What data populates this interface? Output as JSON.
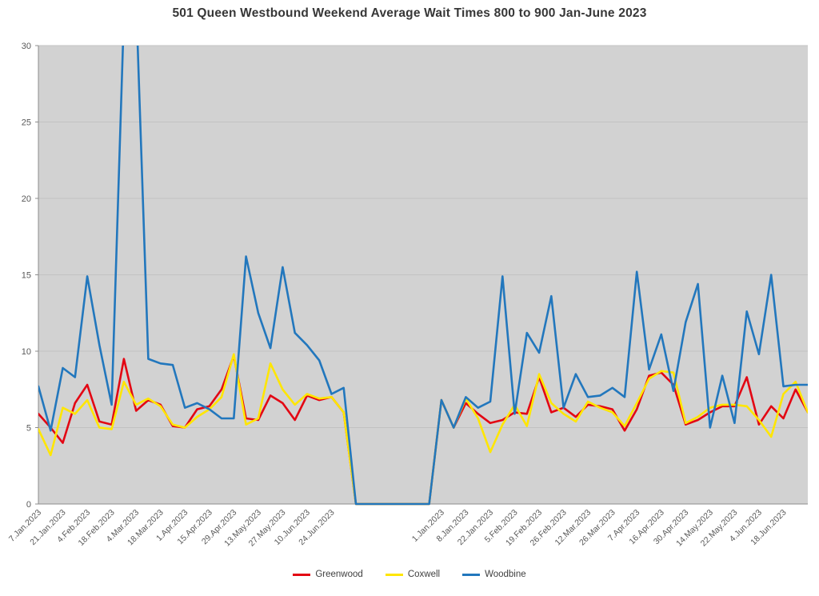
{
  "title": "501 Queen Westbound Weekend Average Wait Times 800 to 900 Jan-June 2023",
  "chart_data": {
    "type": "line",
    "title": "501 Queen Westbound Weekend Average Wait Times 800 to 900 Jan-June 2023",
    "xlabel": "",
    "ylabel": "",
    "ylim": [
      0,
      30
    ],
    "yticks": [
      0,
      5,
      10,
      15,
      20,
      25,
      30
    ],
    "grid": true,
    "legend_position": "bottom",
    "plot_bg": "#d2d2d2",
    "grid_color": "#c2c2c2",
    "axis_color": "#8c8c8c",
    "categories": [
      "7.Jan.2023",
      "",
      "21.Jan.2023",
      "",
      "4.Feb.2023",
      "",
      "18.Feb.2023",
      "",
      "4.Mar.2023",
      "",
      "18.Mar.2023",
      "",
      "1.Apr.2023",
      "",
      "15.Apr.2023",
      "",
      "29.Apr.2023",
      "",
      "13.May.2023",
      "",
      "27.May.2023",
      "",
      "10.Jun.2023",
      "",
      "24.Jun.2023",
      "",
      "",
      "",
      "",
      "",
      "",
      "",
      "",
      "1.Jan.2023",
      "",
      "8.Jan.2023",
      "",
      "22.Jan.2023",
      "",
      "5.Feb.2023",
      "",
      "19.Feb.2023",
      "",
      "26.Feb.2023",
      "",
      "12.Mar.2023",
      "",
      "26.Mar.2023",
      "",
      "7.Apr.2023",
      "",
      "16.Apr.2023",
      "",
      "30.Apr.2023",
      "",
      "14.May.2023",
      "",
      "22.May.2023",
      "",
      "4.Jun.2023",
      "",
      "18.Jun.2023",
      "",
      ""
    ],
    "series": [
      {
        "name": "Greenwood",
        "color": "#e30613",
        "values": [
          5.9,
          5.0,
          4.0,
          6.6,
          7.8,
          5.4,
          5.2,
          9.5,
          6.1,
          6.8,
          6.5,
          5.1,
          5.0,
          6.2,
          6.4,
          7.5,
          9.7,
          5.6,
          5.5,
          7.1,
          6.6,
          5.5,
          7.1,
          6.8,
          7.0,
          6.0,
          0,
          0,
          0,
          0,
          0,
          0,
          0,
          6.8,
          5.0,
          6.6,
          5.9,
          5.3,
          5.5,
          6.0,
          5.9,
          8.3,
          6.0,
          6.3,
          5.7,
          6.5,
          6.4,
          6.2,
          4.8,
          6.2,
          8.4,
          8.6,
          7.8,
          5.2,
          5.5,
          6.0,
          6.4,
          6.4,
          8.3,
          5.2,
          6.4,
          5.6,
          7.5,
          6.0
        ]
      },
      {
        "name": "Coxwell",
        "color": "#ffe600",
        "values": [
          4.9,
          3.2,
          6.3,
          5.9,
          6.8,
          5.0,
          4.9,
          8.0,
          6.5,
          6.9,
          6.4,
          5.2,
          5.0,
          5.7,
          6.2,
          7.0,
          9.8,
          5.2,
          5.6,
          9.2,
          7.5,
          6.5,
          7.2,
          6.9,
          7.0,
          6.0,
          0,
          0,
          0,
          0,
          0,
          0,
          0,
          6.8,
          5.0,
          6.9,
          5.6,
          3.4,
          5.2,
          6.5,
          5.1,
          8.5,
          6.6,
          5.9,
          5.4,
          6.7,
          6.3,
          6.0,
          5.1,
          6.6,
          8.2,
          8.7,
          8.6,
          5.3,
          5.7,
          6.3,
          6.5,
          6.5,
          6.4,
          5.5,
          4.4,
          7.2,
          8.0,
          6.0
        ]
      },
      {
        "name": "Woodbine",
        "color": "#2277bd",
        "values": [
          7.7,
          4.8,
          8.9,
          8.3,
          14.9,
          10.4,
          6.5,
          32,
          33,
          9.5,
          9.2,
          9.1,
          6.3,
          6.6,
          6.2,
          5.6,
          5.6,
          16.2,
          12.5,
          10.2,
          15.5,
          11.2,
          10.4,
          9.4,
          7.2,
          7.6,
          0,
          0,
          0,
          0,
          0,
          0,
          0,
          6.8,
          5.0,
          7.0,
          6.3,
          6.7,
          14.9,
          5.9,
          11.2,
          9.9,
          13.6,
          6.3,
          8.5,
          7.0,
          7.1,
          7.6,
          7.0,
          15.2,
          8.8,
          11.1,
          7.4,
          11.9,
          14.4,
          5.0,
          8.4,
          5.3,
          12.6,
          9.8,
          15.0,
          7.7,
          7.8,
          7.8
        ]
      }
    ]
  }
}
